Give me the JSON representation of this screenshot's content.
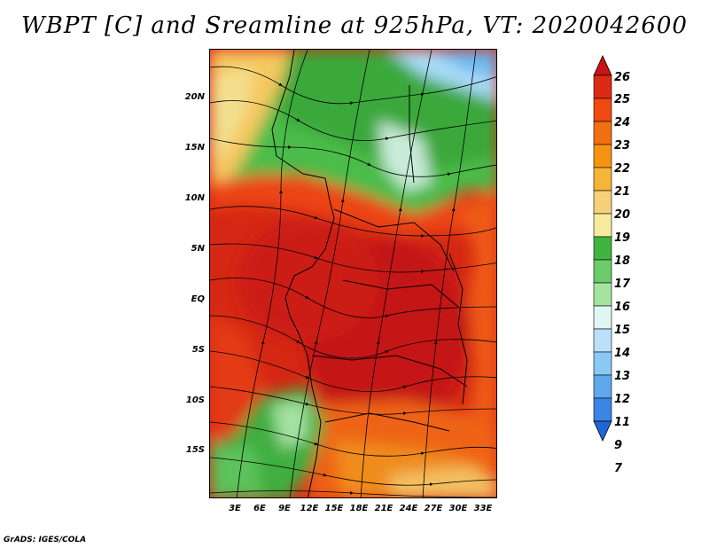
{
  "title": "WBPT [C] and Sreamline at 925hPa, VT: 2020042600",
  "footer": "GrADS: IGES/COLA",
  "map": {
    "lat_labels": [
      "20N",
      "15N",
      "10N",
      "5N",
      "EQ",
      "5S",
      "10S",
      "15S"
    ],
    "lon_labels": [
      "3E",
      "6E",
      "9E",
      "12E",
      "15E",
      "18E",
      "21E",
      "24E",
      "27E",
      "30E",
      "33E"
    ]
  },
  "colorbar": {
    "labels": [
      "26",
      "25",
      "24",
      "23",
      "22",
      "21",
      "20",
      "19",
      "18",
      "17",
      "16",
      "15",
      "14",
      "13",
      "12",
      "11",
      "9",
      "7"
    ],
    "colors": [
      "#c81414",
      "#dd2a14",
      "#ee4a12",
      "#f26f12",
      "#f59410",
      "#f6b43a",
      "#f5d27a",
      "#f6ec9e",
      "#3fb43f",
      "#6ccc6a",
      "#a4e4a0",
      "#e0f6f2",
      "#bce0fa",
      "#8cc8f4",
      "#5ea8ec",
      "#3a86e2",
      "#1f66d6"
    ]
  }
}
